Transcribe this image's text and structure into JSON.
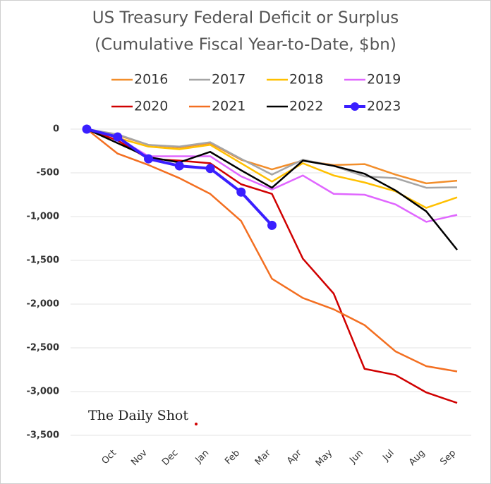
{
  "chart_data": {
    "type": "line",
    "title": "US Treasury Federal Deficit or Surplus",
    "subtitle": "(Cumulative Fiscal Year-to-Date, $bn)",
    "watermark": "The Daily Shot",
    "categories": [
      null,
      "Oct",
      "Nov",
      "Dec",
      "Jan",
      "Feb",
      "Mar",
      "Apr",
      "May",
      "Jun",
      "Jul",
      "Aug",
      "Sep"
    ],
    "ylim": [
      -3500,
      0
    ],
    "yticks": [
      0,
      -500,
      {
        "value": -1000,
        "label": "-1,000"
      },
      {
        "value": -1500,
        "label": "-1,500"
      },
      {
        "value": -2000,
        "label": "-2,000"
      },
      {
        "value": -2500,
        "label": "-2,500"
      },
      {
        "value": -3000,
        "label": "-3,000"
      },
      {
        "value": -3500,
        "label": "-3,500"
      }
    ],
    "grid": true,
    "series": [
      {
        "name": "2016",
        "color": "#F28E2B",
        "values": [
          0,
          -70,
          -180,
          -210,
          -160,
          -350,
          -460,
          -360,
          -410,
          -400,
          -520,
          -620,
          -590
        ]
      },
      {
        "name": "2017",
        "color": "#A5A5A5",
        "values": [
          0,
          -60,
          -180,
          -200,
          -150,
          -340,
          -520,
          -350,
          -420,
          -540,
          -560,
          -670,
          -665
        ]
      },
      {
        "name": "2018",
        "color": "#FFC000",
        "values": [
          0,
          -100,
          -200,
          -230,
          -180,
          -390,
          -600,
          -390,
          -530,
          -610,
          -710,
          -900,
          -780
        ]
      },
      {
        "name": "2019",
        "color": "#E066FF",
        "values": [
          0,
          -100,
          -310,
          -310,
          -310,
          -540,
          -690,
          -530,
          -740,
          -750,
          -860,
          -1060,
          -980
        ]
      },
      {
        "name": "2020",
        "color": "#D00000",
        "values": [
          0,
          -130,
          -340,
          -360,
          -390,
          -630,
          -740,
          -1480,
          -1880,
          -2740,
          -2810,
          -3010,
          -3130
        ]
      },
      {
        "name": "2021",
        "color": "#F36F21",
        "values": [
          0,
          -280,
          -410,
          -560,
          -740,
          -1050,
          -1710,
          -1930,
          -2060,
          -2240,
          -2540,
          -2710,
          -2770
        ]
      },
      {
        "name": "2022",
        "color": "#000000",
        "values": [
          0,
          -160,
          -320,
          -380,
          -260,
          -470,
          -670,
          -360,
          -420,
          -510,
          -700,
          -940,
          -1380
        ]
      },
      {
        "name": "2023",
        "color": "#3A1FFF",
        "markers": true,
        "values": [
          0,
          -90,
          -340,
          -420,
          -450,
          -720,
          -1100,
          null,
          null,
          null,
          null,
          null,
          null
        ]
      }
    ]
  }
}
